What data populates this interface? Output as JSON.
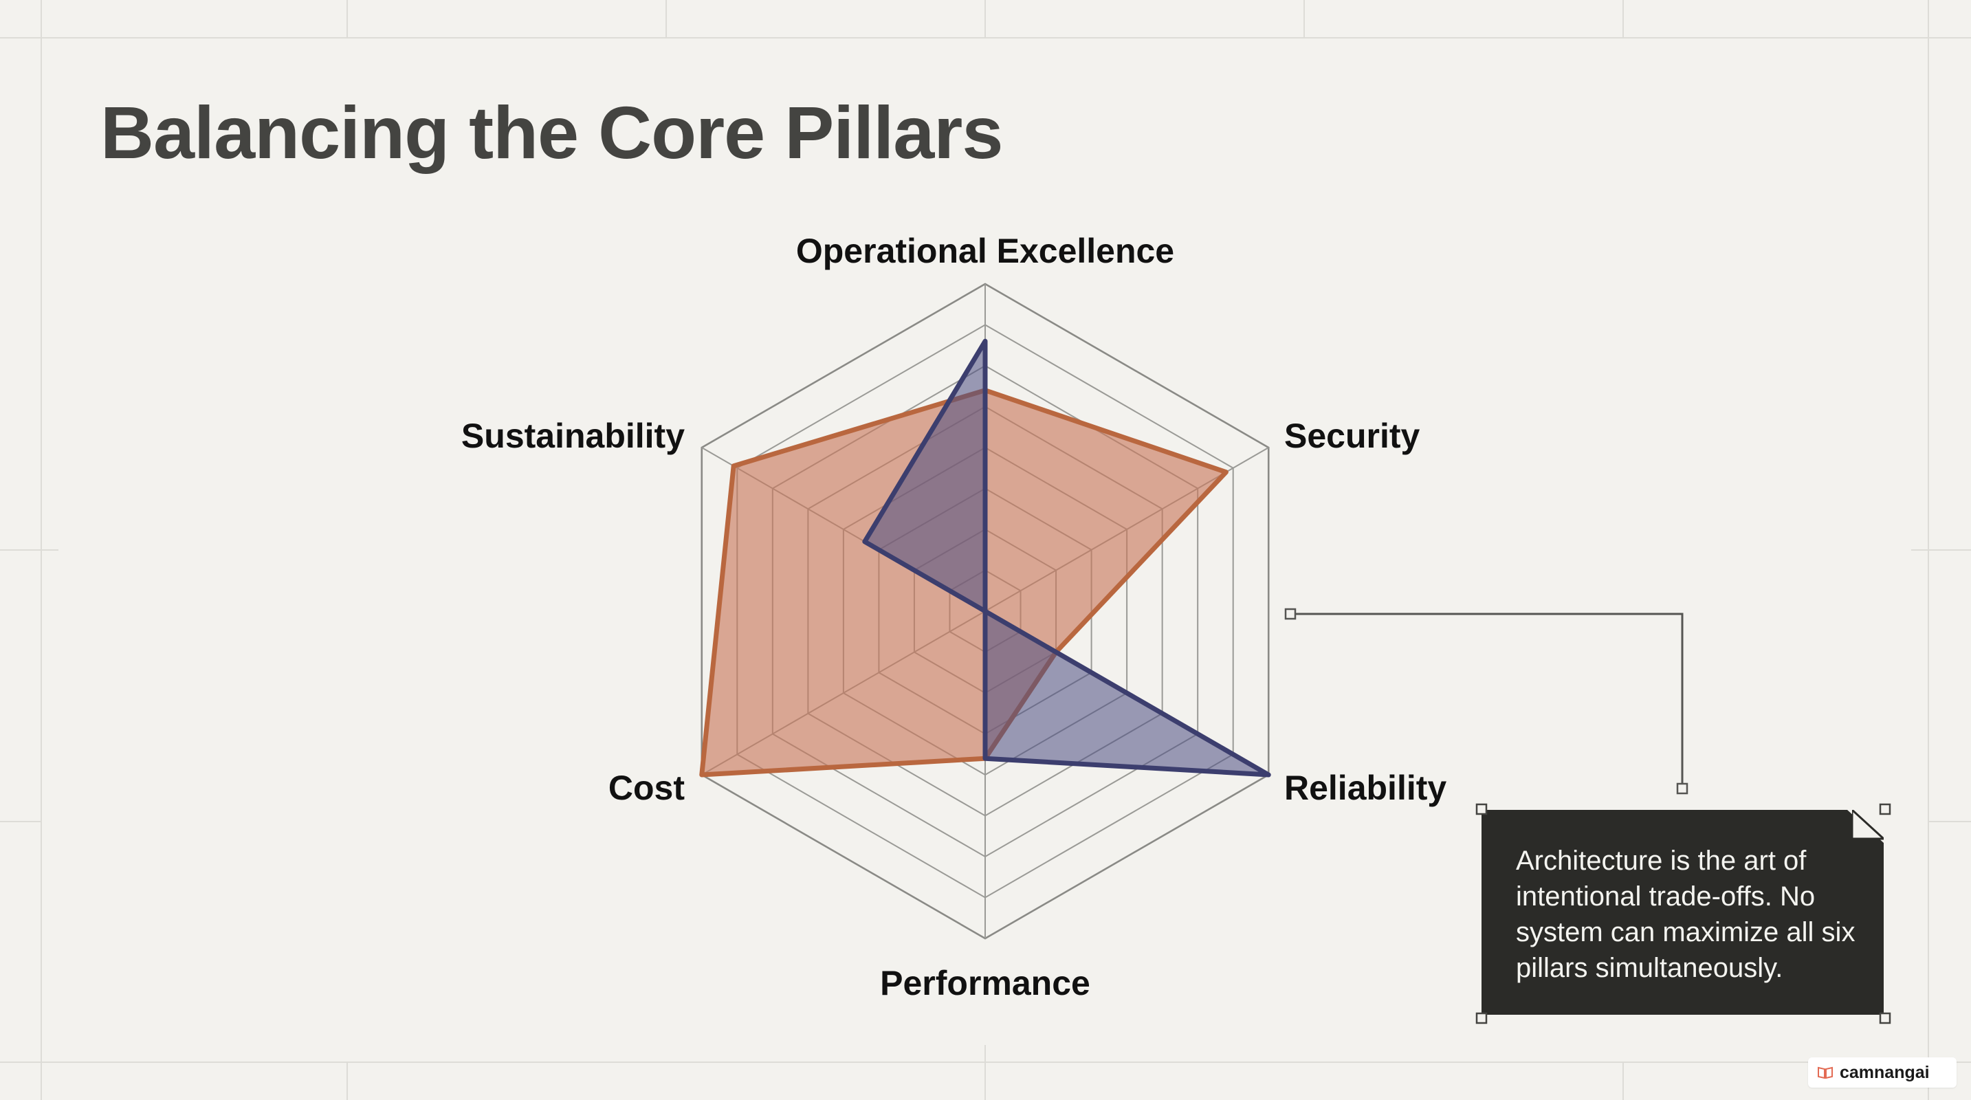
{
  "slide": {
    "title": "Balancing the Core Pillars",
    "callout": "Architecture is the art of intentional trade-offs. No system can maximize all six pillars simultaneously."
  },
  "brand": {
    "name": "camnangai",
    "icon": "book-icon",
    "icon_color": "#e36b54"
  },
  "colors": {
    "background": "#f3f2ee",
    "series_a": "#c8775a",
    "series_b": "#4d4f84",
    "callout_bg": "#2b2b28"
  },
  "chart_data": {
    "type": "radar",
    "axes": [
      "Operational Excellence",
      "Security",
      "Reliability",
      "Performance",
      "Cost",
      "Sustainability"
    ],
    "rlim": [
      0,
      8
    ],
    "grid_levels": [
      1,
      2,
      3,
      4,
      5,
      6,
      7,
      8
    ],
    "series": [
      {
        "values": [
          5.4,
          6.8,
          2.0,
          3.6,
          8.0,
          7.1
        ]
      },
      {
        "values": [
          6.6,
          0.0,
          8.0,
          3.6,
          0.0,
          3.4
        ]
      }
    ]
  }
}
